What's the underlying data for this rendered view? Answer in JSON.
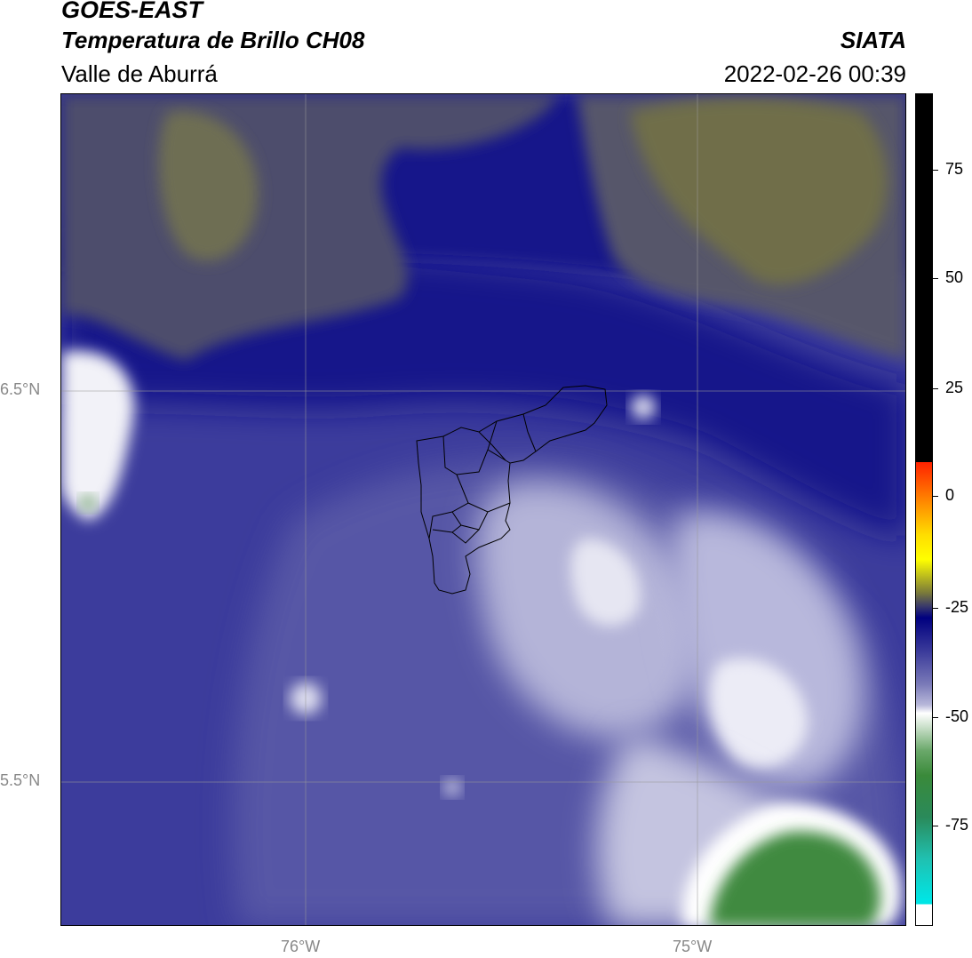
{
  "header": {
    "title": "GOES-EAST",
    "subtitle": "Temperatura de Brillo CH08",
    "organization": "SIATA",
    "region": "Valle de Aburrá",
    "timestamp": "2022-02-26 00:39"
  },
  "map": {
    "lat_labels": [
      "6.5°N",
      "5.5°N"
    ],
    "lon_labels": [
      "76°W",
      "75°W"
    ]
  },
  "colorbar": {
    "ticks": [
      "75",
      "50",
      "25",
      "0",
      "-25",
      "-50",
      "-75"
    ],
    "colors": {
      "black": "#000000",
      "red": "#ff2200",
      "orange": "#ff8800",
      "yellow": "#ffff00",
      "olive": "#7a7a3a",
      "navy": "#00007f",
      "blue": "#3a3a9a",
      "lavender": "#b8b8da",
      "white": "#ffffff",
      "green": "#3a8a3a",
      "cyan": "#00e5e5"
    }
  }
}
